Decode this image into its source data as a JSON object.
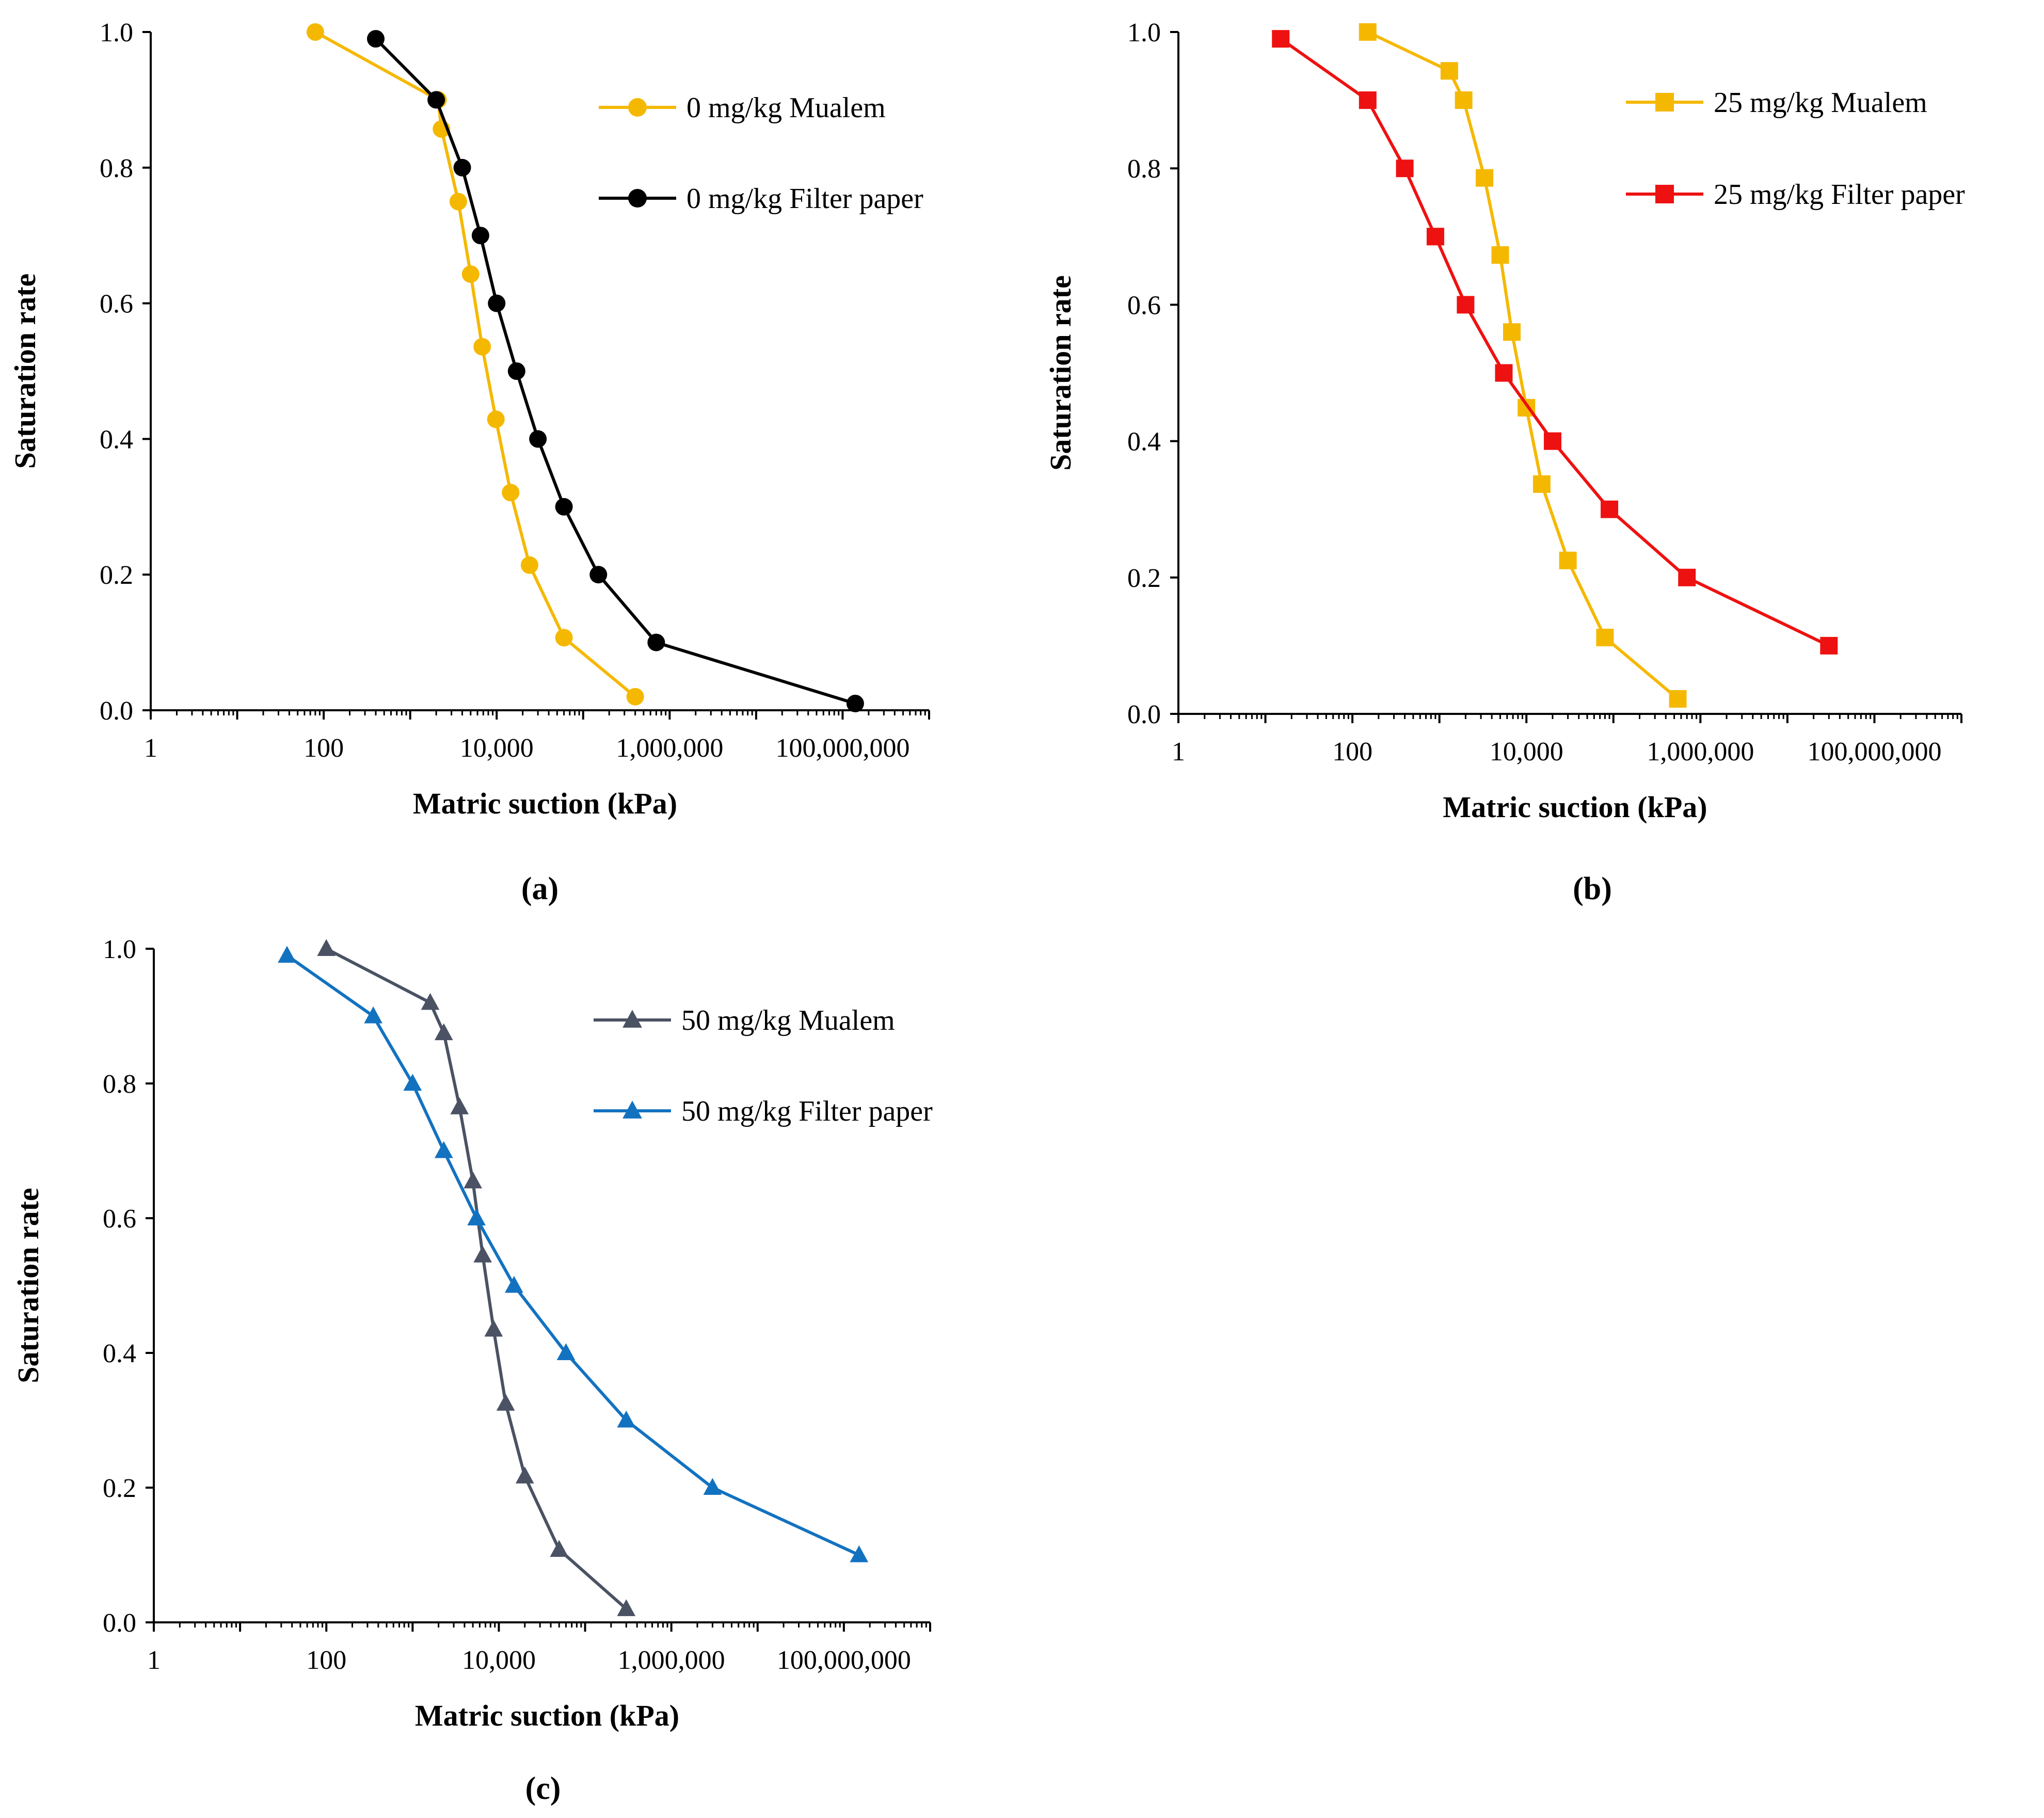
{
  "chart_data": [
    {
      "panel": "(a)",
      "type": "line",
      "xscale": "log",
      "xlabel": "Matric suction (kPa)",
      "ylabel": "Saturation rate",
      "xlim": [
        1,
        1000000000
      ],
      "ylim": [
        0,
        1
      ],
      "xticks": [
        "1",
        "100",
        "10,000",
        "1,000,000",
        "100,000,000"
      ],
      "yticks": [
        "0.0",
        "0.2",
        "0.4",
        "0.6",
        "0.8",
        "1.0"
      ],
      "legend_position": "top-right",
      "series": [
        {
          "name": "0 mg/kg Mualem",
          "color": "#F5B800",
          "marker": "circle",
          "x": [
            80,
            2100,
            2300,
            3600,
            5000,
            6800,
            9800,
            14500,
            24000,
            60000,
            400000
          ],
          "y": [
            1.0,
            0.9,
            0.857,
            0.75,
            0.643,
            0.536,
            0.429,
            0.321,
            0.214,
            0.107,
            0.02
          ]
        },
        {
          "name": "0 mg/kg Filter paper",
          "color": "#000000",
          "marker": "circle",
          "x": [
            400,
            2000,
            4000,
            6500,
            10000,
            17000,
            30000,
            60000,
            150000,
            700000,
            140000000
          ],
          "y": [
            0.99,
            0.9,
            0.8,
            0.7,
            0.6,
            0.5,
            0.4,
            0.3,
            0.2,
            0.1,
            0.01
          ]
        }
      ]
    },
    {
      "panel": "(b)",
      "type": "line",
      "xscale": "log",
      "xlabel": "Matric suction (kPa)",
      "ylabel": "Saturation rate",
      "xlim": [
        1,
        1000000000
      ],
      "ylim": [
        0,
        1
      ],
      "xticks": [
        "1",
        "100",
        "10,000",
        "1,000,000",
        "100,000,000"
      ],
      "yticks": [
        "0.0",
        "0.2",
        "0.4",
        "0.6",
        "0.8",
        "1.0"
      ],
      "legend_position": "top-right",
      "series": [
        {
          "name": "25 mg/kg Mualem",
          "color": "#F5B800",
          "marker": "square",
          "x": [
            150,
            1300,
            1900,
            3300,
            5000,
            6800,
            10000,
            15000,
            30000,
            80000,
            550000
          ],
          "y": [
            1.0,
            0.943,
            0.9,
            0.786,
            0.673,
            0.56,
            0.449,
            0.337,
            0.225,
            0.112,
            0.022
          ]
        },
        {
          "name": "25 mg/kg Filter paper",
          "color": "#EE1111",
          "marker": "square",
          "x": [
            15,
            150,
            400,
            900,
            2000,
            5500,
            20000,
            90000,
            700000,
            30000000
          ],
          "y": [
            0.99,
            0.9,
            0.8,
            0.7,
            0.6,
            0.5,
            0.4,
            0.3,
            0.2,
            0.1
          ]
        }
      ]
    },
    {
      "panel": "(c)",
      "type": "line",
      "xscale": "log",
      "xlabel": "Matric suction (kPa)",
      "ylabel": "Saturation rate",
      "xlim": [
        1,
        1000000000
      ],
      "ylim": [
        0,
        1
      ],
      "xticks": [
        "1",
        "100",
        "10,000",
        "1,000,000",
        "100,000,000"
      ],
      "yticks": [
        "0.0",
        "0.2",
        "0.4",
        "0.6",
        "0.8",
        "1.0"
      ],
      "legend_position": "top-right",
      "series": [
        {
          "name": "50 mg/kg Mualem",
          "color": "#4A5263",
          "marker": "triangle",
          "x": [
            100,
            1600,
            2300,
            3500,
            5000,
            6500,
            8700,
            12000,
            20000,
            50000,
            300000
          ],
          "y": [
            1.0,
            0.92,
            0.875,
            0.765,
            0.655,
            0.545,
            0.435,
            0.325,
            0.217,
            0.108,
            0.02
          ]
        },
        {
          "name": "50 mg/kg Filter paper",
          "color": "#1372C0",
          "marker": "triangle",
          "x": [
            35,
            350,
            1000,
            2300,
            5500,
            15000,
            60000,
            300000,
            3000000,
            150000000
          ],
          "y": [
            0.99,
            0.9,
            0.8,
            0.7,
            0.6,
            0.5,
            0.4,
            0.3,
            0.2,
            0.1
          ]
        }
      ]
    }
  ]
}
